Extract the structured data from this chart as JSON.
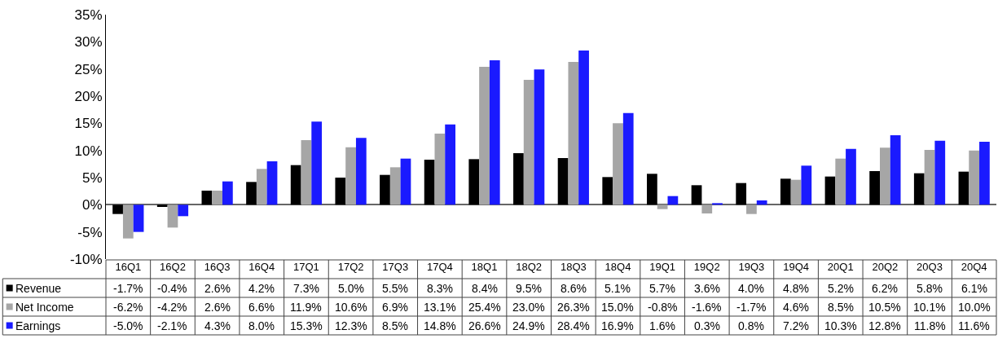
{
  "chart_data": {
    "type": "bar",
    "categories": [
      "16Q1",
      "16Q2",
      "16Q3",
      "16Q4",
      "17Q1",
      "17Q2",
      "17Q3",
      "17Q4",
      "18Q1",
      "18Q2",
      "18Q3",
      "18Q4",
      "19Q1",
      "19Q2",
      "19Q3",
      "19Q4",
      "20Q1",
      "20Q2",
      "20Q3",
      "20Q4"
    ],
    "series": [
      {
        "name": "Revenue",
        "color": "#000000",
        "values": [
          -1.7,
          -0.4,
          2.6,
          4.2,
          7.3,
          5.0,
          5.5,
          8.3,
          8.4,
          9.5,
          8.6,
          5.1,
          5.7,
          3.6,
          4.0,
          4.8,
          5.2,
          6.2,
          5.8,
          6.1
        ],
        "value_labels": [
          "-1.7%",
          "-0.4%",
          "2.6%",
          "4.2%",
          "7.3%",
          "5.0%",
          "5.5%",
          "8.3%",
          "8.4%",
          "9.5%",
          "8.6%",
          "5.1%",
          "5.7%",
          "3.6%",
          "4.0%",
          "4.8%",
          "5.2%",
          "6.2%",
          "5.8%",
          "6.1%"
        ]
      },
      {
        "name": "Net Income",
        "color": "#a6a6a6",
        "values": [
          -6.2,
          -4.2,
          2.6,
          6.6,
          11.9,
          10.6,
          6.9,
          13.1,
          25.4,
          23.0,
          26.3,
          15.0,
          -0.8,
          -1.6,
          -1.7,
          4.6,
          8.5,
          10.5,
          10.1,
          10.0
        ],
        "value_labels": [
          "-6.2%",
          "-4.2%",
          "2.6%",
          "6.6%",
          "11.9%",
          "10.6%",
          "6.9%",
          "13.1%",
          "25.4%",
          "23.0%",
          "26.3%",
          "15.0%",
          "-0.8%",
          "-1.6%",
          "-1.7%",
          "4.6%",
          "8.5%",
          "10.5%",
          "10.1%",
          "10.0%"
        ]
      },
      {
        "name": "Earnings",
        "color": "#1a1aff",
        "values": [
          -5.0,
          -2.1,
          4.3,
          8.0,
          15.3,
          12.3,
          8.5,
          14.8,
          26.6,
          24.9,
          28.4,
          16.9,
          1.6,
          0.3,
          0.8,
          7.2,
          10.3,
          12.8,
          11.8,
          11.6
        ],
        "value_labels": [
          "-5.0%",
          "-2.1%",
          "4.3%",
          "8.0%",
          "15.3%",
          "12.3%",
          "8.5%",
          "14.8%",
          "26.6%",
          "24.9%",
          "28.4%",
          "16.9%",
          "1.6%",
          "0.3%",
          "0.8%",
          "7.2%",
          "10.3%",
          "12.8%",
          "11.8%",
          "11.6%"
        ]
      }
    ],
    "ylim": [
      -10,
      35
    ],
    "yticks": [
      {
        "value": -10,
        "label": "-10%"
      },
      {
        "value": -5,
        "label": "-5%"
      },
      {
        "value": 0,
        "label": "0%"
      },
      {
        "value": 5,
        "label": "5%"
      },
      {
        "value": 10,
        "label": "10%"
      },
      {
        "value": 15,
        "label": "15%"
      },
      {
        "value": 20,
        "label": "20%"
      },
      {
        "value": 25,
        "label": "25%"
      },
      {
        "value": 30,
        "label": "30%"
      },
      {
        "value": 35,
        "label": "35%"
      }
    ],
    "legend": "bottom left"
  }
}
